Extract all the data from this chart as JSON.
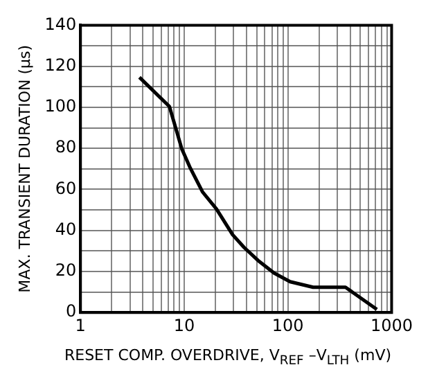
{
  "chart_data": {
    "type": "line",
    "xlabel": "RESET COMP. OVERDRIVE, V$_{REF}$ –V$_{LTH}$ (mV)",
    "ylabel": "MAX. TRANSIENT DURATION (µs)",
    "log": "x",
    "grid": true,
    "marker": "none",
    "line_style": "solid",
    "legend": false,
    "xlim": [
      1,
      1000
    ],
    "ylim": [
      0,
      140
    ],
    "xticks": [
      1,
      {
        "value": 2,
        "label": null
      },
      {
        "value": 3,
        "label": null
      },
      {
        "value": 4,
        "label": null
      },
      {
        "value": 5,
        "label": null
      },
      {
        "value": 6,
        "label": null
      },
      {
        "value": 7,
        "label": null
      },
      {
        "value": 8,
        "label": null
      },
      {
        "value": 9,
        "label": null
      },
      10,
      {
        "value": 20,
        "label": null
      },
      {
        "value": 30,
        "label": null
      },
      {
        "value": 40,
        "label": null
      },
      {
        "value": 50,
        "label": null
      },
      {
        "value": 60,
        "label": null
      },
      {
        "value": 70,
        "label": null
      },
      {
        "value": 80,
        "label": null
      },
      {
        "value": 90,
        "label": null
      },
      100,
      {
        "value": 200,
        "label": null
      },
      {
        "value": 300,
        "label": null
      },
      {
        "value": 400,
        "label": null
      },
      {
        "value": 500,
        "label": null
      },
      {
        "value": 600,
        "label": null
      },
      {
        "value": 700,
        "label": null
      },
      {
        "value": 800,
        "label": null
      },
      {
        "value": 900,
        "label": null
      },
      1000
    ],
    "yticks": [
      0,
      {
        "value": 10,
        "label": null
      },
      20,
      {
        "value": 30,
        "label": null
      },
      40,
      {
        "value": 50,
        "label": null
      },
      60,
      {
        "value": 70,
        "label": null
      },
      80,
      {
        "value": 90,
        "label": null
      },
      100,
      {
        "value": 110,
        "label": null
      },
      120,
      {
        "value": 130,
        "label": null
      },
      140
    ],
    "series": [
      {
        "color": "#000000",
        "x": [
          3.7,
          7.2,
          9.5,
          11.3,
          15,
          20.5,
          29.3,
          37.8,
          51.4,
          73.6,
          105,
          175,
          359,
          721
        ],
        "values": [
          114.6,
          100.4,
          79.6,
          71,
          58.8,
          50.4,
          37.9,
          31.7,
          25.4,
          19.2,
          15,
          12.3,
          12.3,
          1.5
        ]
      }
    ]
  }
}
